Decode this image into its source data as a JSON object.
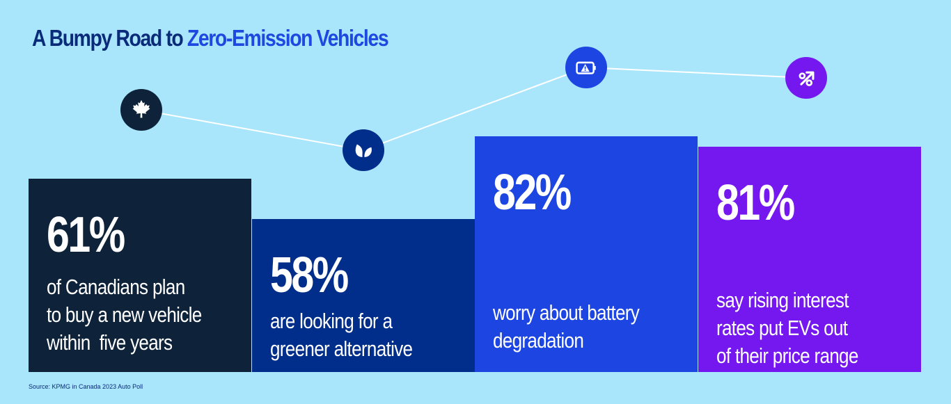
{
  "title": {
    "part1": "A Bumpy Road to ",
    "part2": "Zero-Emission Vehicles"
  },
  "colors": {
    "background": "#a9e6fb",
    "title_dark": "#0a2a7a",
    "title_accent": "#1d49e0",
    "connector": "#ffffff"
  },
  "chart_data": {
    "type": "bar",
    "categories": [
      "of Canadians plan to buy a new vehicle within five years",
      "are looking for a greener alternative",
      "worry about battery degradation",
      "say rising interest rates put EVs out of their price range"
    ],
    "values": [
      61,
      58,
      82,
      81
    ],
    "unit": "%",
    "bars": [
      {
        "value_label": "61%",
        "description": "of Canadians plan\nto buy a new vehicle\nwithin  five years",
        "color": "#0e2339",
        "icon": "maple-leaf-icon",
        "icon_color": "#0e2339"
      },
      {
        "value_label": "58%",
        "description": "are looking for a\ngreener alternative",
        "color": "#002e8a",
        "icon": "leaf-icon",
        "icon_color": "#002e8a"
      },
      {
        "value_label": "82%",
        "description": "worry about battery\ndegradation",
        "color": "#1c45e1",
        "icon": "battery-warning-icon",
        "icon_color": "#1c45e1"
      },
      {
        "value_label": "81%",
        "description": "say rising interest\nrates put EVs out\nof their price range",
        "color": "#7418ef",
        "icon": "percent-up-icon",
        "icon_color": "#7418ef"
      }
    ]
  },
  "source": "Source: KPMG in Canada 2023 Auto Poll"
}
